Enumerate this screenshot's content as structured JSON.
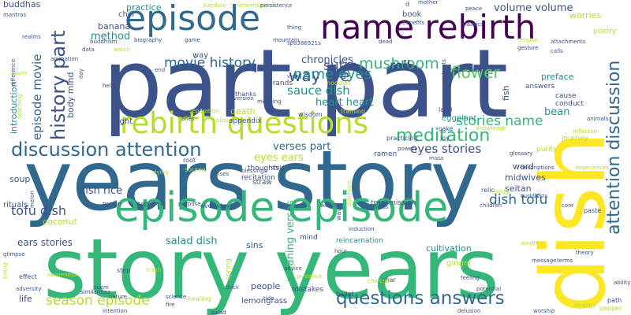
{
  "palette": {
    "background": "#ffffff",
    "dark_purple": "#440154",
    "indigo": "#3b528b",
    "blue": "#31688e",
    "teal": "#21918c",
    "green": "#35b779",
    "light_green": "#5ec962",
    "lime": "#b5de2b",
    "yellow": "#fde725"
  },
  "words": [
    {
      "text": "part part",
      "color": "#3b528b"
    },
    {
      "text": "years story",
      "color": "#31688e"
    },
    {
      "text": "story years",
      "color": "#35b779"
    },
    {
      "text": "dish",
      "color": "#fde725"
    },
    {
      "text": "episode",
      "color": "#31688e"
    },
    {
      "text": "name rebirth",
      "color": "#440154"
    },
    {
      "text": "episode episode",
      "color": "#35b779"
    },
    {
      "text": "rebirth questions",
      "color": "#b5de2b"
    },
    {
      "text": "discussion attention",
      "color": "#31688e"
    },
    {
      "text": "attention discussion",
      "color": "#31688e"
    },
    {
      "text": "history part",
      "color": "#3b528b"
    },
    {
      "text": "questions answers",
      "color": "#31688e"
    },
    {
      "text": "way life",
      "color": "#3b528b"
    },
    {
      "text": "movie history",
      "color": "#31688e"
    },
    {
      "text": "mushroom",
      "color": "#35b779"
    },
    {
      "text": "flower",
      "color": "#5ec962"
    },
    {
      "text": "name eyes",
      "color": "#21918c"
    },
    {
      "text": "meditation",
      "color": "#35b779"
    },
    {
      "text": "stories name",
      "color": "#35b779"
    },
    {
      "text": "tofu dish",
      "color": "#3b528b"
    },
    {
      "text": "dish tofu",
      "color": "#31688e"
    },
    {
      "text": "season episode",
      "color": "#b5de2b"
    },
    {
      "text": "eyes stories",
      "color": "#3b528b"
    },
    {
      "text": "episode movie",
      "color": "#31688e"
    },
    {
      "text": "sauce dish",
      "color": "#21918c"
    },
    {
      "text": "sutra",
      "color": "#3b528b"
    },
    {
      "text": "roll",
      "color": "#3b528b"
    },
    {
      "text": "chronicles",
      "color": "#3b528b"
    },
    {
      "text": "heart heart",
      "color": "#21918c"
    },
    {
      "text": "volume volume",
      "color": "#3b528b"
    },
    {
      "text": "method",
      "color": "#21918c"
    },
    {
      "text": "verses part",
      "color": "#31688e"
    },
    {
      "text": "eyes ears",
      "color": "#b5de2b"
    },
    {
      "text": "dish rice",
      "color": "#3b528b"
    },
    {
      "text": "salad dish",
      "color": "#21918c"
    },
    {
      "text": "meaning verses",
      "color": "#35b779"
    },
    {
      "text": "ears stories",
      "color": "#3b528b"
    },
    {
      "text": "preface",
      "color": "#21918c"
    },
    {
      "text": "bean",
      "color": "#21918c"
    },
    {
      "text": "worries",
      "color": "#b5de2b"
    },
    {
      "text": "practice",
      "color": "#21918c"
    },
    {
      "text": "banana",
      "color": "#3b528b"
    },
    {
      "text": "book",
      "color": "#3b528b"
    },
    {
      "text": "death",
      "color": "#b5de2b"
    },
    {
      "text": "people",
      "color": "#3b528b"
    },
    {
      "text": "sins",
      "color": "#3b528b"
    },
    {
      "text": "seitan",
      "color": "#3b528b"
    },
    {
      "text": "midwives",
      "color": "#3b528b"
    },
    {
      "text": "word",
      "color": "#3b528b"
    },
    {
      "text": "cultivation",
      "color": "#21918c"
    },
    {
      "text": "lemongrass",
      "color": "#3b528b"
    },
    {
      "text": "life",
      "color": "#3b528b"
    },
    {
      "text": "introduction",
      "color": "#21918c"
    },
    {
      "text": "brands",
      "color": "#3b528b"
    },
    {
      "text": "soup",
      "color": "#3b528b"
    },
    {
      "text": "rituals",
      "color": "#3b528b"
    },
    {
      "text": "coconut",
      "color": "#b5de2b"
    },
    {
      "text": "light",
      "color": "#3b528b"
    },
    {
      "text": "ginger",
      "color": "#b5de2b"
    },
    {
      "text": "buddhas",
      "color": "#3b528b"
    },
    {
      "text": "chili",
      "color": "#3b528b"
    },
    {
      "text": "fish",
      "color": "#3b528b"
    },
    {
      "text": "body mind",
      "color": "#3b528b"
    },
    {
      "text": "way",
      "color": "#3b528b"
    },
    {
      "text": "eggplant",
      "color": "#21918c"
    },
    {
      "text": "mistakes",
      "color": "#3b528b"
    },
    {
      "text": "answers",
      "color": "#3b528b"
    },
    {
      "text": "cause",
      "color": "#3b528b"
    },
    {
      "text": "conduct",
      "color": "#3b528b"
    },
    {
      "text": "poetry",
      "color": "#b5de2b"
    },
    {
      "text": "journey",
      "color": "#b5de2b"
    },
    {
      "text": "purity",
      "color": "#b5de2b"
    },
    {
      "text": "mind",
      "color": "#3b528b"
    },
    {
      "text": "reincarnation",
      "color": "#21918c"
    },
    {
      "text": "transmission",
      "color": "#3b528b"
    },
    {
      "text": "recitation",
      "color": "#3b528b"
    },
    {
      "text": "thoughts",
      "color": "#3b528b"
    },
    {
      "text": "spring",
      "color": "#b5de2b"
    },
    {
      "text": "straw",
      "color": "#3b528b"
    },
    {
      "text": "ramen",
      "color": "#3b528b"
    },
    {
      "text": "appendix",
      "color": "#3b528b"
    },
    {
      "text": "healing",
      "color": "#b5de2b"
    },
    {
      "text": "practicing",
      "color": "#3b528b"
    },
    {
      "text": "wisdom",
      "color": "#3b528b"
    },
    {
      "text": "training",
      "color": "#b5de2b"
    },
    {
      "text": "noodles",
      "color": "#b5de2b"
    },
    {
      "text": "thanks",
      "color": "#3b528b"
    },
    {
      "text": "joy",
      "color": "#3b528b"
    },
    {
      "text": "cake",
      "color": "#3b528b"
    },
    {
      "text": "land",
      "color": "#3b528b"
    },
    {
      "text": "relic",
      "color": "#3b528b"
    },
    {
      "text": "body",
      "color": "#b5de2b"
    },
    {
      "text": "paste",
      "color": "#3b528b"
    },
    {
      "text": "path",
      "color": "#3b528b"
    },
    {
      "text": "energy",
      "color": "#b5de2b"
    },
    {
      "text": "pepper",
      "color": "#b5de2b"
    },
    {
      "text": "char",
      "color": "#3b528b"
    },
    {
      "text": "ballet",
      "color": "#3b528b"
    },
    {
      "text": "wave",
      "color": "#3b528b"
    },
    {
      "text": "source",
      "color": "#b5de2b"
    },
    {
      "text": "root",
      "color": "#3b528b"
    },
    {
      "text": "everyday",
      "color": "#3b528b"
    },
    {
      "text": "effect",
      "color": "#3b528b"
    },
    {
      "text": "step",
      "color": "#3b528b"
    },
    {
      "text": "blessings",
      "color": "#3b528b"
    },
    {
      "text": "mother",
      "color": "#3b528b"
    },
    {
      "text": "benefits",
      "color": "#3b528b"
    },
    {
      "text": "shoots",
      "color": "#3b528b"
    },
    {
      "text": "thing",
      "color": "#3b528b"
    },
    {
      "text": "bamboo",
      "color": "#b5de2b"
    },
    {
      "text": "mantras",
      "color": "#3b528b"
    },
    {
      "text": "buddhism",
      "color": "#3b528b"
    },
    {
      "text": "animation",
      "color": "#3b528b"
    },
    {
      "text": "difference",
      "color": "#3b528b"
    },
    {
      "text": "teaching",
      "color": "#b5de2b"
    },
    {
      "text": "hell",
      "color": "#3b528b"
    },
    {
      "text": "end",
      "color": "#3b528b"
    },
    {
      "text": "dead",
      "color": "#3b528b"
    },
    {
      "text": "protection",
      "color": "#3b528b"
    },
    {
      "text": "gesture",
      "color": "#3b528b"
    },
    {
      "text": "religion",
      "color": "#b5de2b"
    },
    {
      "text": "attachments",
      "color": "#3b528b"
    },
    {
      "text": "calls",
      "color": "#3b528b"
    },
    {
      "text": "theory",
      "color": "#3b528b"
    },
    {
      "text": "message",
      "color": "#3b528b"
    },
    {
      "text": "terms",
      "color": "#3b528b"
    },
    {
      "text": "dying",
      "color": "#b5de2b"
    },
    {
      "text": "melon",
      "color": "#3b528b"
    },
    {
      "text": "happiness",
      "color": "#3b528b"
    },
    {
      "text": "purpose",
      "color": "#3b528b"
    },
    {
      "text": "nature",
      "color": "#3b528b"
    },
    {
      "text": "science",
      "color": "#3b528b"
    },
    {
      "text": "salad",
      "color": "#3b528b"
    },
    {
      "text": "delusion",
      "color": "#3b528b"
    },
    {
      "text": "worship",
      "color": "#3b528b"
    },
    {
      "text": "children",
      "color": "#3b528b"
    },
    {
      "text": "descriptions",
      "color": "#3b528b"
    },
    {
      "text": "buddhists",
      "color": "#3b528b"
    },
    {
      "text": "experiences",
      "color": "#b5de2b"
    },
    {
      "text": "adversity",
      "color": "#3b528b"
    },
    {
      "text": "awareness",
      "color": "#b5de2b"
    },
    {
      "text": "glimpse",
      "color": "#3b528b"
    },
    {
      "text": "killing",
      "color": "#b5de2b"
    },
    {
      "text": "advice",
      "color": "#3b528b"
    },
    {
      "text": "guidance",
      "color": "#b5de2b"
    },
    {
      "text": "feeling",
      "color": "#3b528b"
    },
    {
      "text": "potential",
      "color": "#3b528b"
    },
    {
      "text": "ability",
      "color": "#3b528b"
    },
    {
      "text": "wealth",
      "color": "#b5de2b"
    },
    {
      "text": "core",
      "color": "#3b528b"
    },
    {
      "text": "animals",
      "color": "#3b528b"
    },
    {
      "text": "reflection",
      "color": "#b5de2b"
    },
    {
      "text": "glossary",
      "color": "#3b528b"
    },
    {
      "text": "powers",
      "color": "#3b528b"
    },
    {
      "text": "mass",
      "color": "#3b528b"
    },
    {
      "text": "fields",
      "color": "#3b528b"
    },
    {
      "text": "optimism",
      "color": "#b5de2b"
    },
    {
      "text": "hour",
      "color": "#3b528b"
    },
    {
      "text": "induction",
      "color": "#3b528b"
    },
    {
      "text": "lenses",
      "color": "#3b528b"
    },
    {
      "text": "child",
      "color": "#3b528b"
    },
    {
      "text": "ones",
      "color": "#3b528b"
    },
    {
      "text": "bliss",
      "color": "#b5de2b"
    },
    {
      "text": "meaning",
      "color": "#3b528b"
    },
    {
      "text": "version",
      "color": "#3b528b"
    },
    {
      "text": "mountain",
      "color": "#3b528b"
    },
    {
      "text": "game",
      "color": "#3b528b"
    },
    {
      "text": "biography",
      "color": "#3b528b"
    },
    {
      "text": "watch",
      "color": "#b5de2b"
    },
    {
      "text": "data",
      "color": "#3b528b"
    },
    {
      "text": "realms",
      "color": "#3b528b"
    },
    {
      "text": "day",
      "color": "#3b528b"
    },
    {
      "text": "buyer",
      "color": "#b5de2b"
    },
    {
      "text": "similarities",
      "color": "#3b528b"
    },
    {
      "text": "poem",
      "color": "#3b528b"
    },
    {
      "text": "intention",
      "color": "#3b528b"
    },
    {
      "text": "knowledge",
      "color": "#b5de2b"
    },
    {
      "text": "separation",
      "color": "#b5de2b"
    },
    {
      "text": "view",
      "color": "#3b528b"
    },
    {
      "text": "classics",
      "color": "#3b528b"
    },
    {
      "text": "peace",
      "color": "#3b528b"
    },
    {
      "text": "remembrance",
      "color": "#b5de2b"
    },
    {
      "text": "spo386921s",
      "color": "#3b528b"
    },
    {
      "text": "persistence",
      "color": "#3b528b"
    },
    {
      "text": "d",
      "color": "#3b528b"
    },
    {
      "text": "thick",
      "color": "#3b528b"
    },
    {
      "text": "fire",
      "color": "#3b528b"
    },
    {
      "text": "channel",
      "color": "#b5de2b"
    },
    {
      "text": "trash",
      "color": "#b5de2b"
    },
    {
      "text": "person",
      "color": "#3b528b"
    },
    {
      "text": "tide",
      "color": "#3b528b"
    },
    {
      "text": "world",
      "color": "#3b528b"
    }
  ]
}
